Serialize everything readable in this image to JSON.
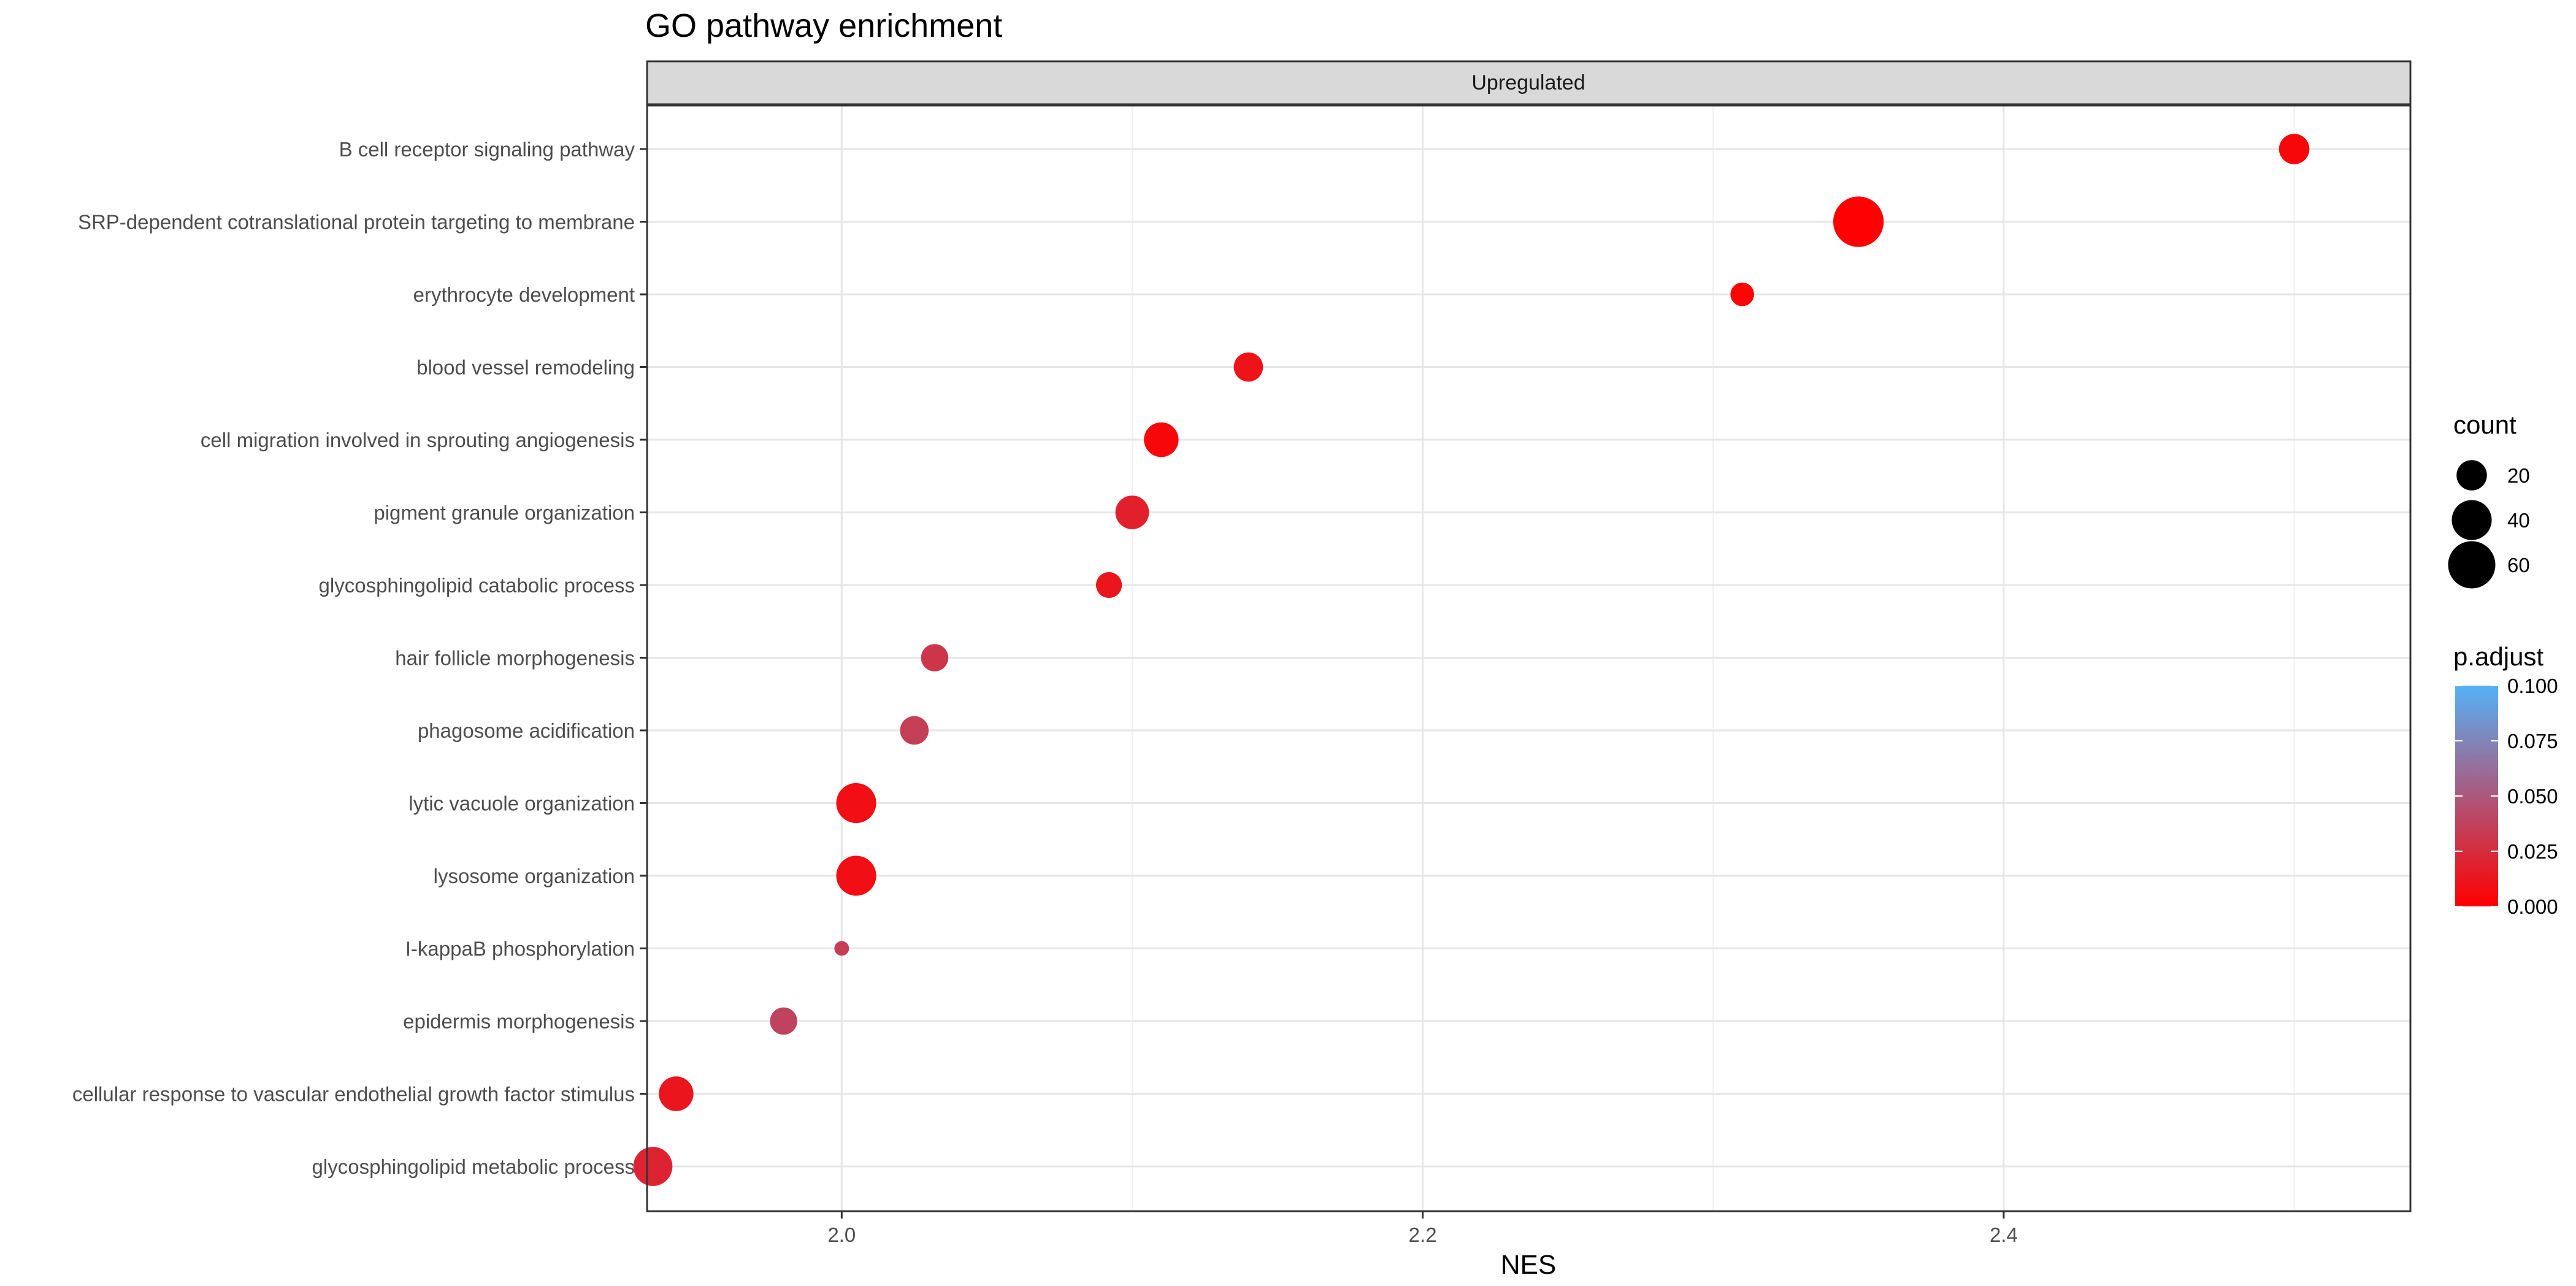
{
  "chart_data": {
    "type": "scatter",
    "title": "GO pathway enrichment",
    "facet": "Upregulated",
    "xlabel": "NES",
    "ylabel": "",
    "xlim": [
      1.933,
      2.54
    ],
    "x_ticks": [
      2.0,
      2.2,
      2.4
    ],
    "x_tick_labels": [
      "2.0",
      "2.2",
      "2.4"
    ],
    "grid": true,
    "legend_position": "right",
    "points": [
      {
        "term": "B cell receptor signaling pathway",
        "nes": 2.5,
        "count": 20,
        "p_adjust": 0.004
      },
      {
        "term": "SRP-dependent cotranslational protein targeting to membrane",
        "nes": 2.35,
        "count": 70,
        "p_adjust": 0.0005
      },
      {
        "term": "erythrocyte development",
        "nes": 2.31,
        "count": 10,
        "p_adjust": 0.002
      },
      {
        "term": "blood vessel remodeling",
        "nes": 2.14,
        "count": 18,
        "p_adjust": 0.01
      },
      {
        "term": "cell migration involved in sprouting angiogenesis",
        "nes": 2.11,
        "count": 28,
        "p_adjust": 0.004
      },
      {
        "term": "pigment granule organization",
        "nes": 2.1,
        "count": 26,
        "p_adjust": 0.018
      },
      {
        "term": "glycosphingolipid catabolic process",
        "nes": 2.092,
        "count": 13,
        "p_adjust": 0.012
      },
      {
        "term": "hair follicle morphogenesis",
        "nes": 2.032,
        "count": 15,
        "p_adjust": 0.03
      },
      {
        "term": "phagosome acidification",
        "nes": 2.025,
        "count": 17,
        "p_adjust": 0.035
      },
      {
        "term": "lytic vacuole organization",
        "nes": 2.005,
        "count": 40,
        "p_adjust": 0.008
      },
      {
        "term": "lysosome organization",
        "nes": 2.005,
        "count": 40,
        "p_adjust": 0.008
      },
      {
        "term": "I-kappaB phosphorylation",
        "nes": 2.0,
        "count": 2,
        "p_adjust": 0.035
      },
      {
        "term": "epidermis morphogenesis",
        "nes": 1.98,
        "count": 15,
        "p_adjust": 0.038
      },
      {
        "term": "cellular response to vascular endothelial growth factor stimulus",
        "nes": 1.943,
        "count": 28,
        "p_adjust": 0.012
      },
      {
        "term": "glycosphingolipid metabolic process",
        "nes": 1.935,
        "count": 38,
        "p_adjust": 0.02
      }
    ],
    "size_legend": {
      "title": "count",
      "values": [
        20,
        40,
        60
      ]
    },
    "color_legend": {
      "title": "p.adjust",
      "range": [
        0.0,
        0.1
      ],
      "low_color": "#FF0000",
      "high_color": "#56B1F7",
      "ticks": [
        0.1,
        0.075,
        0.05,
        0.025,
        0.0
      ],
      "tick_labels": [
        "0.100",
        "0.075",
        "0.050",
        "0.025",
        "0.000"
      ]
    }
  }
}
